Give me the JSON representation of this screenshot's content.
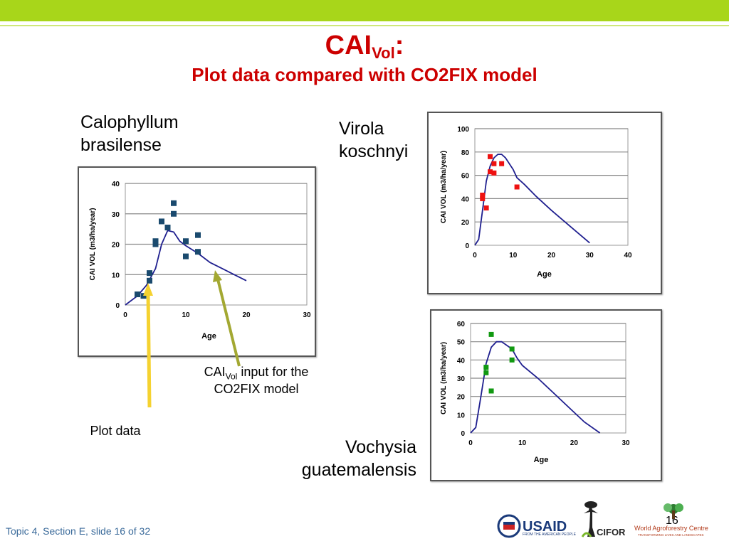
{
  "slide": {
    "title_main": "CAI",
    "title_sub": "Vol",
    "title_colon": ":",
    "subtitle": "Plot data compared with CO2FIX model",
    "footer": "Topic 4, Section E, slide 16 of 32",
    "slide_number": "16"
  },
  "species": {
    "calophyllum": "Calophyllum brasilense",
    "virola": "Virola koschnyi",
    "vochysia": "Vochysia guatemalensis"
  },
  "annotations": {
    "cai_input_prefix": "CAI",
    "cai_input_sub": "Vol",
    "cai_input_rest": " input for the CO2FIX model",
    "plot_data": "Plot data"
  },
  "logos": {
    "usaid": "USAID",
    "usaid_tagline": "FROM THE AMERICAN PEOPLE",
    "cifor": "CIFOR",
    "icraf": "World Agroforestry Centre",
    "icraf_tagline": "TRANSFORMING LIVES AND LANDSCAPES"
  },
  "colors": {
    "accent_bar": "#a8d61a",
    "title": "#cc0000",
    "model_line": "#1f1f8f",
    "calophyllum_points": "#1a4a6e",
    "virola_points": "#ee1111",
    "vochysia_points": "#119911",
    "yellow_arrow": "#f5d230",
    "olive_arrow": "#a3a832"
  },
  "chart_data": [
    {
      "type": "scatter",
      "name": "calophyllum",
      "xlabel": "Age",
      "ylabel": "CAI VOL  (m3/ha/year)",
      "xlim": [
        0,
        30
      ],
      "ylim": [
        0,
        40
      ],
      "xticks": [
        0,
        10,
        20,
        30
      ],
      "yticks": [
        0,
        10,
        20,
        30,
        40
      ],
      "grid": true,
      "points": [
        [
          2,
          3.5
        ],
        [
          3,
          3
        ],
        [
          4,
          8
        ],
        [
          4,
          10.5
        ],
        [
          5,
          20
        ],
        [
          5,
          21
        ],
        [
          6,
          27.5
        ],
        [
          7,
          25.5
        ],
        [
          8,
          33.5
        ],
        [
          8,
          30
        ],
        [
          10,
          21
        ],
        [
          10,
          16
        ],
        [
          12,
          23
        ],
        [
          12,
          17.5
        ]
      ],
      "model_line": [
        [
          0,
          0
        ],
        [
          2,
          3
        ],
        [
          3.5,
          6.5
        ],
        [
          5,
          12
        ],
        [
          6,
          20
        ],
        [
          7,
          24.5
        ],
        [
          8,
          24
        ],
        [
          9,
          21
        ],
        [
          10,
          19.5
        ],
        [
          12,
          17
        ],
        [
          14,
          14
        ],
        [
          16,
          12
        ],
        [
          18,
          10
        ],
        [
          20,
          8
        ]
      ]
    },
    {
      "type": "scatter",
      "name": "virola",
      "xlabel": "Age",
      "ylabel": "CAI VOL  (m3/ha/year)",
      "xlim": [
        0,
        40
      ],
      "ylim": [
        0,
        100
      ],
      "xticks": [
        0,
        10,
        20,
        30,
        40
      ],
      "yticks": [
        0,
        20,
        40,
        60,
        80,
        100
      ],
      "grid": true,
      "points": [
        [
          2,
          43
        ],
        [
          2,
          40
        ],
        [
          3,
          32
        ],
        [
          4,
          76
        ],
        [
          4,
          63
        ],
        [
          5,
          70
        ],
        [
          5,
          62
        ],
        [
          7,
          70
        ],
        [
          11,
          50
        ]
      ],
      "model_line": [
        [
          0,
          0
        ],
        [
          1,
          5
        ],
        [
          2,
          30
        ],
        [
          3,
          55
        ],
        [
          4,
          68
        ],
        [
          5,
          75
        ],
        [
          6,
          78
        ],
        [
          7,
          78
        ],
        [
          8,
          75
        ],
        [
          10,
          65
        ],
        [
          11,
          58
        ],
        [
          13,
          52
        ],
        [
          16,
          42
        ],
        [
          20,
          30
        ],
        [
          25,
          16
        ],
        [
          30,
          2
        ]
      ]
    },
    {
      "type": "scatter",
      "name": "vochysia",
      "xlabel": "Age",
      "ylabel": "CAI VOL  (m3/ha/year)",
      "xlim": [
        0,
        30
      ],
      "ylim": [
        0,
        60
      ],
      "xticks": [
        0,
        10,
        20,
        30
      ],
      "yticks": [
        0,
        10,
        20,
        30,
        40,
        50,
        60
      ],
      "grid": true,
      "points": [
        [
          3,
          36
        ],
        [
          3,
          33
        ],
        [
          4,
          54
        ],
        [
          4,
          23
        ],
        [
          8,
          46
        ],
        [
          8,
          40
        ]
      ],
      "model_line": [
        [
          0,
          0
        ],
        [
          1,
          3
        ],
        [
          2,
          20
        ],
        [
          3,
          38
        ],
        [
          4,
          47
        ],
        [
          5,
          50
        ],
        [
          6,
          50
        ],
        [
          8,
          46
        ],
        [
          9,
          41
        ],
        [
          10,
          37
        ],
        [
          13,
          30
        ],
        [
          16,
          22
        ],
        [
          19,
          14
        ],
        [
          22,
          6
        ],
        [
          25,
          0
        ]
      ]
    }
  ]
}
